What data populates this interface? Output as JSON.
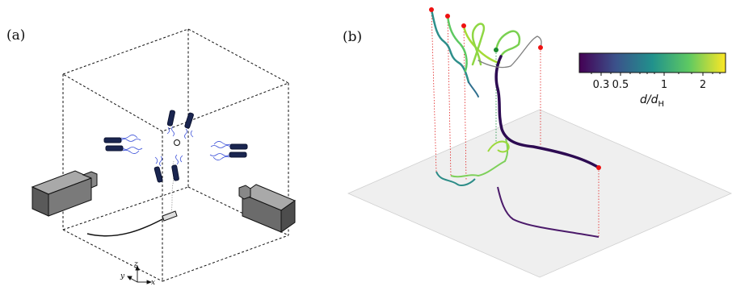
{
  "panel_a": {
    "label": "(a)",
    "axes": {
      "x": "x",
      "y": "y",
      "z": "z"
    }
  },
  "panel_b": {
    "label": "(b)",
    "colorbar": {
      "label": "d/d",
      "label_sub": "H",
      "ticks": [
        "0.3",
        "0.5",
        "1",
        "2"
      ],
      "scale": "log",
      "colormap": "viridis",
      "colors": [
        "#440154",
        "#3b528b",
        "#21918c",
        "#5ec962",
        "#fde725"
      ]
    }
  }
}
